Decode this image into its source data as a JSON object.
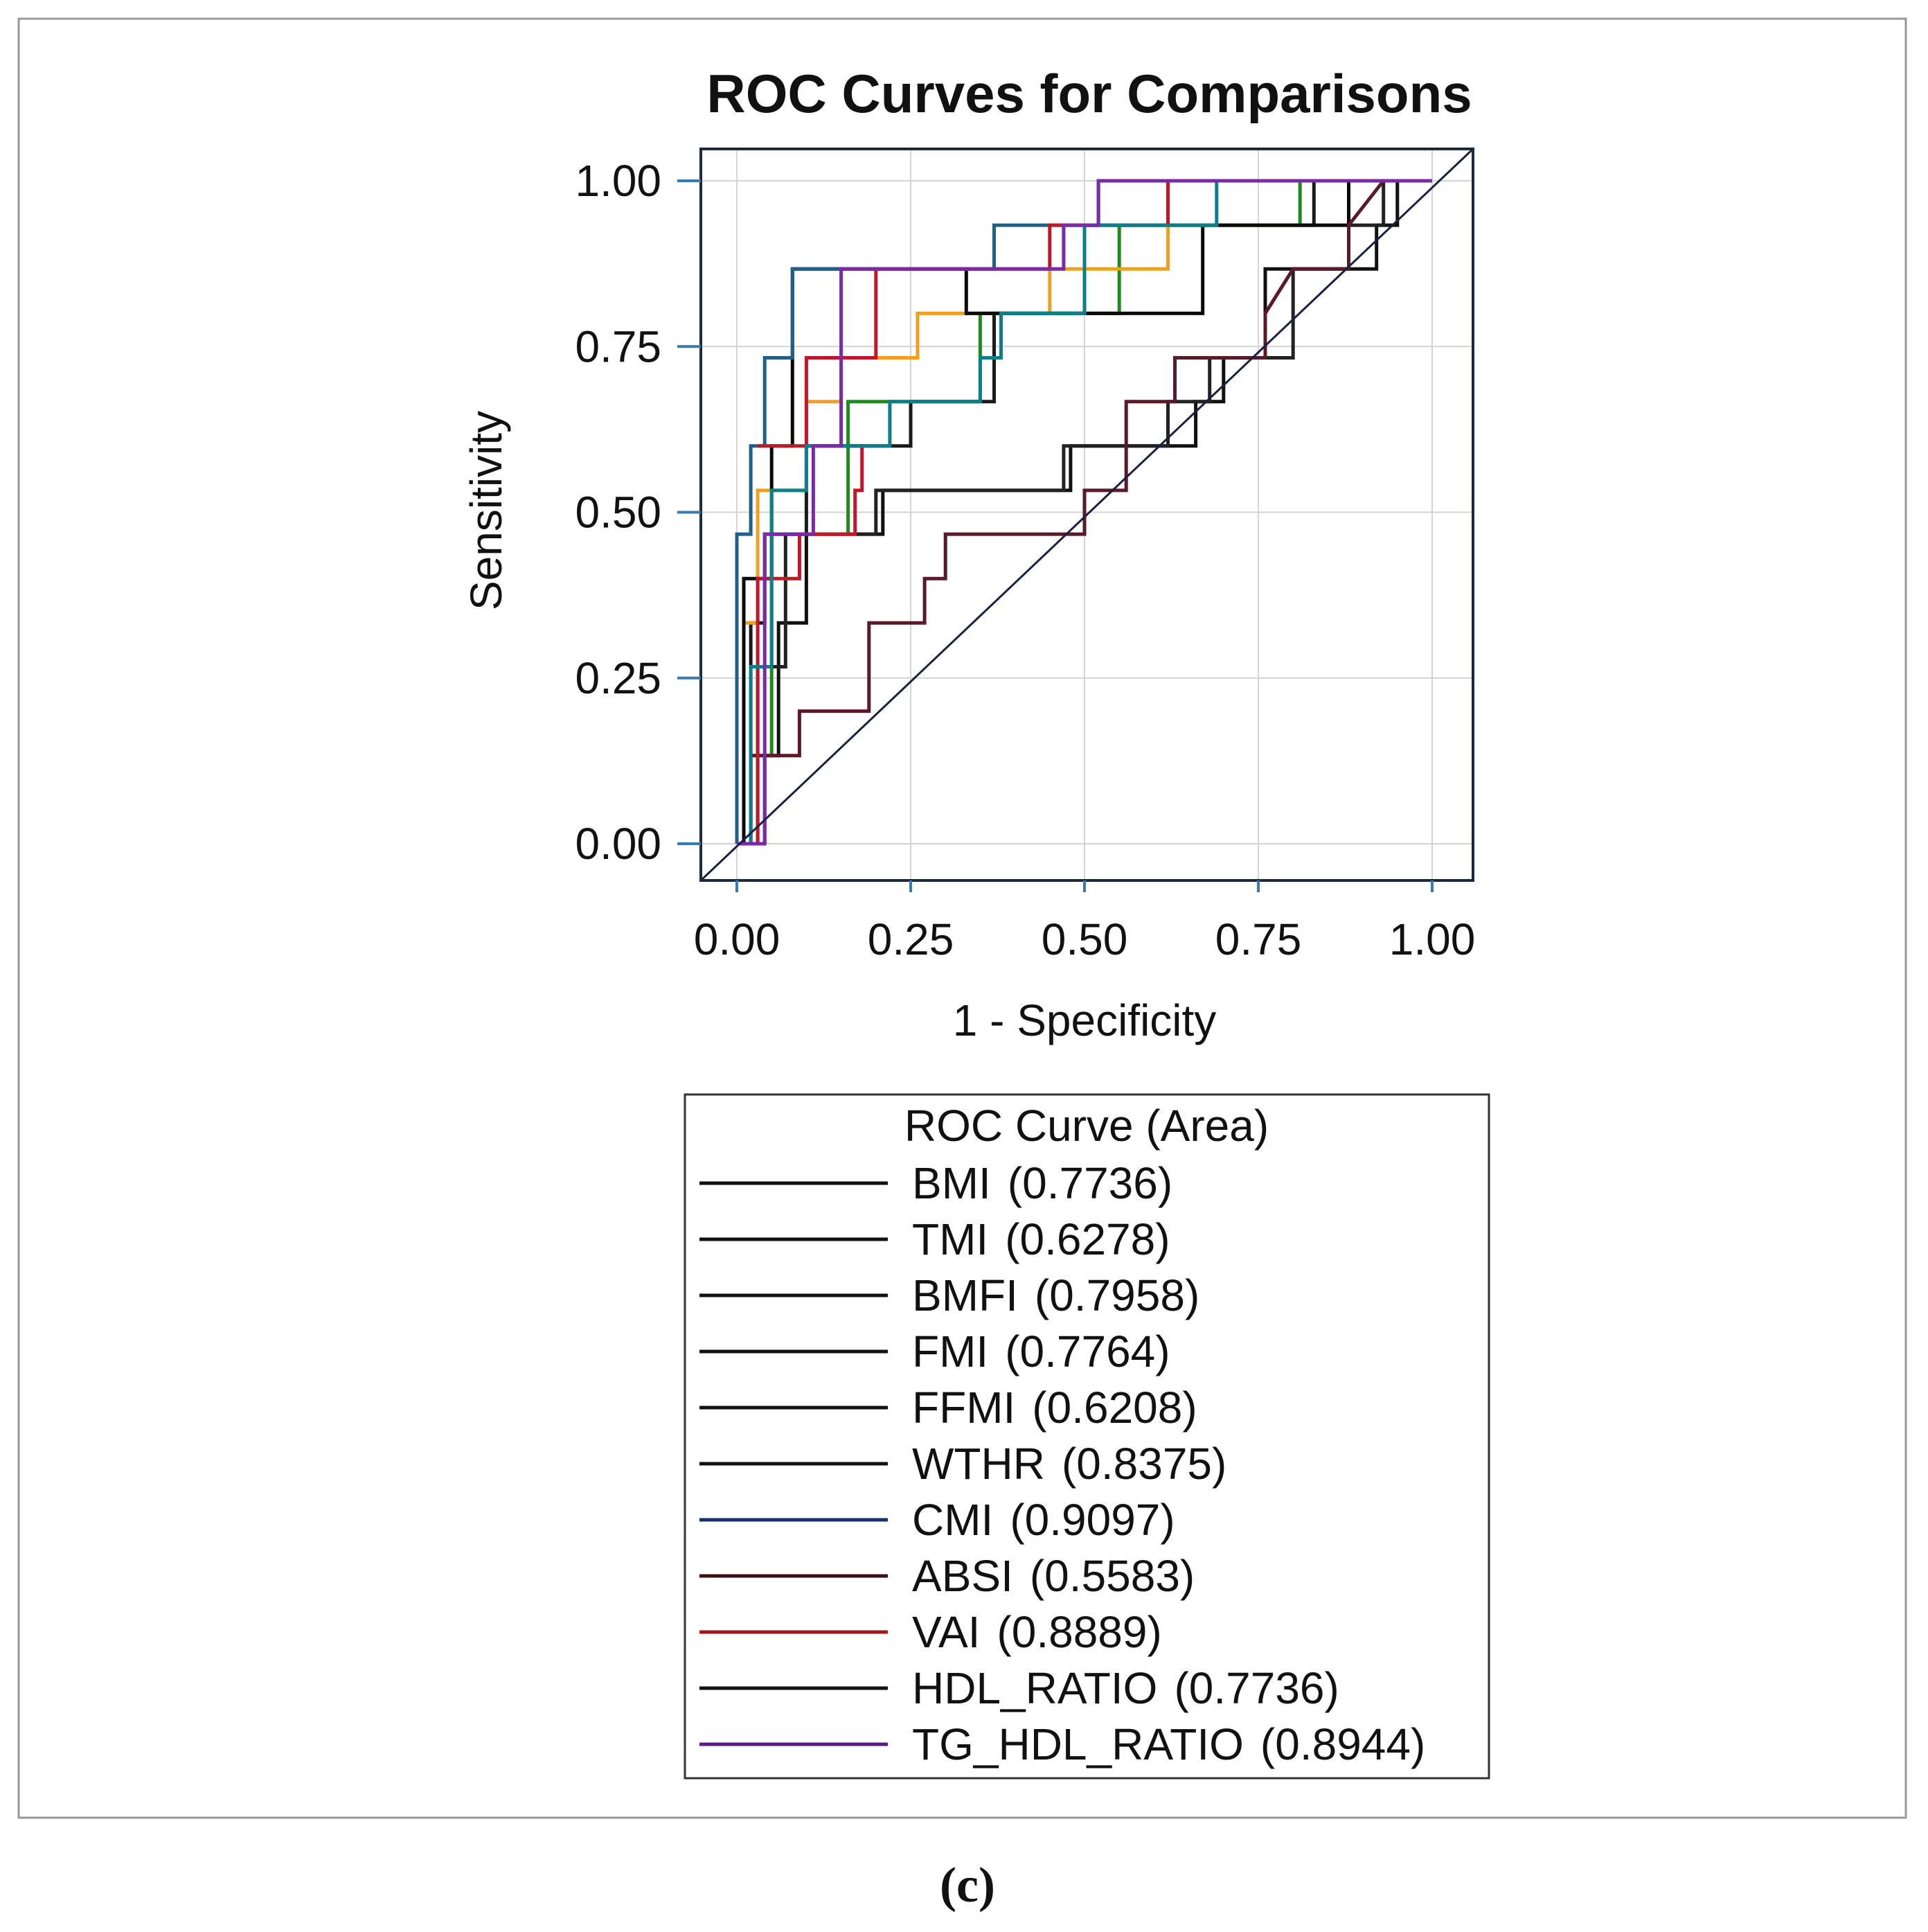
{
  "caption": "(c)",
  "chart_data": {
    "type": "line",
    "title": "ROC Curves for Comparisons",
    "xlabel": "1 - Specificity",
    "ylabel": "Sensitivity",
    "xlim": [
      0,
      1
    ],
    "ylim": [
      0,
      1
    ],
    "xticks": [
      "0.00",
      "0.25",
      "0.50",
      "0.75",
      "1.00"
    ],
    "yticks": [
      "0.00",
      "0.25",
      "0.50",
      "0.75",
      "1.00"
    ],
    "grid": true,
    "legend_title": "ROC Curve (Area)",
    "legend_placement": "bottom",
    "series": [
      {
        "name": "BMI",
        "area": "(0.7736)",
        "legend_color": "#111111",
        "color": "#1a1a1a",
        "points": [
          [
            0,
            0
          ],
          [
            0.02,
            0
          ],
          [
            0.02,
            0.333
          ],
          [
            0.04,
            0.333
          ],
          [
            0.04,
            0.467
          ],
          [
            0.1,
            0.467
          ],
          [
            0.1,
            0.6
          ],
          [
            0.25,
            0.6
          ],
          [
            0.25,
            0.667
          ],
          [
            0.37,
            0.667
          ],
          [
            0.37,
            0.8
          ],
          [
            0.5,
            0.8
          ],
          [
            0.5,
            0.933
          ],
          [
            0.83,
            0.933
          ],
          [
            0.83,
            1
          ],
          [
            1,
            1
          ]
        ]
      },
      {
        "name": "TMI",
        "area": "(0.6278)",
        "legend_color": "#111111",
        "color": "#111111",
        "points": [
          [
            0,
            0
          ],
          [
            0.04,
            0
          ],
          [
            0.04,
            0.133
          ],
          [
            0.06,
            0.133
          ],
          [
            0.06,
            0.333
          ],
          [
            0.1,
            0.333
          ],
          [
            0.1,
            0.467
          ],
          [
            0.21,
            0.467
          ],
          [
            0.21,
            0.533
          ],
          [
            0.48,
            0.533
          ],
          [
            0.48,
            0.6
          ],
          [
            0.66,
            0.6
          ],
          [
            0.66,
            0.667
          ],
          [
            0.7,
            0.667
          ],
          [
            0.7,
            0.733
          ],
          [
            0.76,
            0.733
          ],
          [
            0.76,
            0.867
          ],
          [
            0.92,
            0.867
          ],
          [
            0.92,
            0.933
          ],
          [
            0.95,
            0.933
          ],
          [
            0.95,
            1
          ],
          [
            1,
            1
          ]
        ]
      },
      {
        "name": "BMFI",
        "area": "(0.7958)",
        "legend_color": "#111111",
        "color": "#1f8a1f",
        "points": [
          [
            0,
            0
          ],
          [
            0.02,
            0
          ],
          [
            0.02,
            0.133
          ],
          [
            0.05,
            0.133
          ],
          [
            0.05,
            0.467
          ],
          [
            0.16,
            0.467
          ],
          [
            0.16,
            0.667
          ],
          [
            0.35,
            0.667
          ],
          [
            0.35,
            0.8
          ],
          [
            0.38,
            0.8
          ],
          [
            0.38,
            0.8
          ],
          [
            0.55,
            0.8
          ],
          [
            0.55,
            0.933
          ],
          [
            0.81,
            0.933
          ],
          [
            0.81,
            1
          ],
          [
            1,
            1
          ]
        ]
      },
      {
        "name": "FMI",
        "area": "(0.7764)",
        "legend_color": "#111111",
        "color": "#f0a020",
        "points": [
          [
            0,
            0
          ],
          [
            0.01,
            0
          ],
          [
            0.01,
            0.333
          ],
          [
            0.03,
            0.333
          ],
          [
            0.03,
            0.533
          ],
          [
            0.1,
            0.533
          ],
          [
            0.1,
            0.667
          ],
          [
            0.15,
            0.667
          ],
          [
            0.15,
            0.733
          ],
          [
            0.26,
            0.733
          ],
          [
            0.26,
            0.8
          ],
          [
            0.45,
            0.8
          ],
          [
            0.45,
            0.867
          ],
          [
            0.62,
            0.867
          ],
          [
            0.62,
            1
          ],
          [
            1,
            1
          ]
        ]
      },
      {
        "name": "FFMI",
        "area": "(0.6208)",
        "legend_color": "#111111",
        "color": "#222222",
        "points": [
          [
            0,
            0
          ],
          [
            0.03,
            0
          ],
          [
            0.03,
            0.267
          ],
          [
            0.07,
            0.267
          ],
          [
            0.07,
            0.467
          ],
          [
            0.2,
            0.467
          ],
          [
            0.2,
            0.533
          ],
          [
            0.47,
            0.533
          ],
          [
            0.47,
            0.6
          ],
          [
            0.62,
            0.6
          ],
          [
            0.62,
            0.667
          ],
          [
            0.68,
            0.667
          ],
          [
            0.68,
            0.733
          ],
          [
            0.8,
            0.733
          ],
          [
            0.8,
            0.867
          ],
          [
            0.88,
            0.867
          ],
          [
            0.88,
            0.933
          ],
          [
            0.93,
            0.933
          ],
          [
            0.93,
            1
          ],
          [
            1,
            1
          ]
        ]
      },
      {
        "name": "WTHR",
        "area": "(0.8375)",
        "legend_color": "#111111",
        "color": "#0a0a0a",
        "points": [
          [
            0,
            0
          ],
          [
            0.01,
            0
          ],
          [
            0.01,
            0.4
          ],
          [
            0.05,
            0.4
          ],
          [
            0.05,
            0.6
          ],
          [
            0.08,
            0.6
          ],
          [
            0.08,
            0.867
          ],
          [
            0.33,
            0.867
          ],
          [
            0.33,
            0.8
          ],
          [
            0.37,
            0.8
          ],
          [
            0.37,
            0.8
          ],
          [
            0.67,
            0.8
          ],
          [
            0.67,
            0.933
          ],
          [
            0.88,
            0.933
          ],
          [
            0.88,
            1
          ],
          [
            1,
            1
          ]
        ]
      },
      {
        "name": "CMI",
        "area": "(0.9097)",
        "legend_color": "#1a2f6b",
        "color": "#1f5f8a",
        "points": [
          [
            0,
            0
          ],
          [
            0,
            0.467
          ],
          [
            0.02,
            0.467
          ],
          [
            0.02,
            0.6
          ],
          [
            0.04,
            0.6
          ],
          [
            0.04,
            0.733
          ],
          [
            0.08,
            0.733
          ],
          [
            0.08,
            0.867
          ],
          [
            0.37,
            0.867
          ],
          [
            0.37,
            0.933
          ],
          [
            0.52,
            0.933
          ],
          [
            0.52,
            1
          ],
          [
            1,
            1
          ]
        ]
      },
      {
        "name": "ABSI",
        "area": "(0.5583)",
        "legend_color": "#3a1010",
        "color": "#5a1a2a",
        "points": [
          [
            0,
            0
          ],
          [
            0.02,
            0
          ],
          [
            0.02,
            0.133
          ],
          [
            0.09,
            0.133
          ],
          [
            0.09,
            0.2
          ],
          [
            0.19,
            0.2
          ],
          [
            0.19,
            0.333
          ],
          [
            0.27,
            0.333
          ],
          [
            0.27,
            0.4
          ],
          [
            0.3,
            0.4
          ],
          [
            0.3,
            0.467
          ],
          [
            0.5,
            0.467
          ],
          [
            0.5,
            0.533
          ],
          [
            0.56,
            0.533
          ],
          [
            0.56,
            0.667
          ],
          [
            0.63,
            0.667
          ],
          [
            0.63,
            0.733
          ],
          [
            0.76,
            0.733
          ],
          [
            0.76,
            0.8
          ],
          [
            0.8,
            0.867
          ],
          [
            0.88,
            0.867
          ],
          [
            0.88,
            0.933
          ],
          [
            0.93,
            1
          ],
          [
            1,
            1
          ]
        ]
      },
      {
        "name": "VAI",
        "area": "(0.8889)",
        "legend_color": "#a01818",
        "color": "#c0182a",
        "points": [
          [
            0,
            0
          ],
          [
            0.03,
            0
          ],
          [
            0.03,
            0.4
          ],
          [
            0.09,
            0.4
          ],
          [
            0.09,
            0.467
          ],
          [
            0.17,
            0.467
          ],
          [
            0.17,
            0.533
          ],
          [
            0.18,
            0.533
          ],
          [
            0.18,
            0.6
          ],
          [
            0.03,
            0.6
          ],
          [
            0.1,
            0.6
          ],
          [
            0.1,
            0.733
          ],
          [
            0.2,
            0.733
          ],
          [
            0.2,
            0.867
          ],
          [
            0.45,
            0.867
          ],
          [
            0.45,
            0.933
          ],
          [
            0.62,
            0.933
          ],
          [
            0.62,
            1
          ],
          [
            1,
            1
          ]
        ]
      },
      {
        "name": "HDL_RATIO",
        "area": "(0.7736)",
        "legend_color": "#111111",
        "color": "#0d7f8a",
        "points": [
          [
            0,
            0
          ],
          [
            0.02,
            0
          ],
          [
            0.02,
            0.267
          ],
          [
            0.05,
            0.267
          ],
          [
            0.05,
            0.533
          ],
          [
            0.1,
            0.533
          ],
          [
            0.1,
            0.6
          ],
          [
            0.22,
            0.6
          ],
          [
            0.22,
            0.667
          ],
          [
            0.35,
            0.667
          ],
          [
            0.35,
            0.733
          ],
          [
            0.38,
            0.733
          ],
          [
            0.38,
            0.8
          ],
          [
            0.5,
            0.8
          ],
          [
            0.5,
            0.933
          ],
          [
            0.69,
            0.933
          ],
          [
            0.69,
            1
          ],
          [
            1,
            1
          ]
        ]
      },
      {
        "name": "TG_HDL_RATIO",
        "area": "(0.8944)",
        "legend_color": "#5a1a8a",
        "color": "#7a2aa8",
        "points": [
          [
            0,
            0
          ],
          [
            0.04,
            0
          ],
          [
            0.04,
            0.467
          ],
          [
            0.11,
            0.467
          ],
          [
            0.11,
            0.6
          ],
          [
            0.15,
            0.6
          ],
          [
            0.15,
            0.867
          ],
          [
            0.47,
            0.867
          ],
          [
            0.47,
            0.933
          ],
          [
            0.52,
            0.933
          ],
          [
            0.52,
            1
          ],
          [
            1,
            1
          ]
        ]
      }
    ]
  }
}
